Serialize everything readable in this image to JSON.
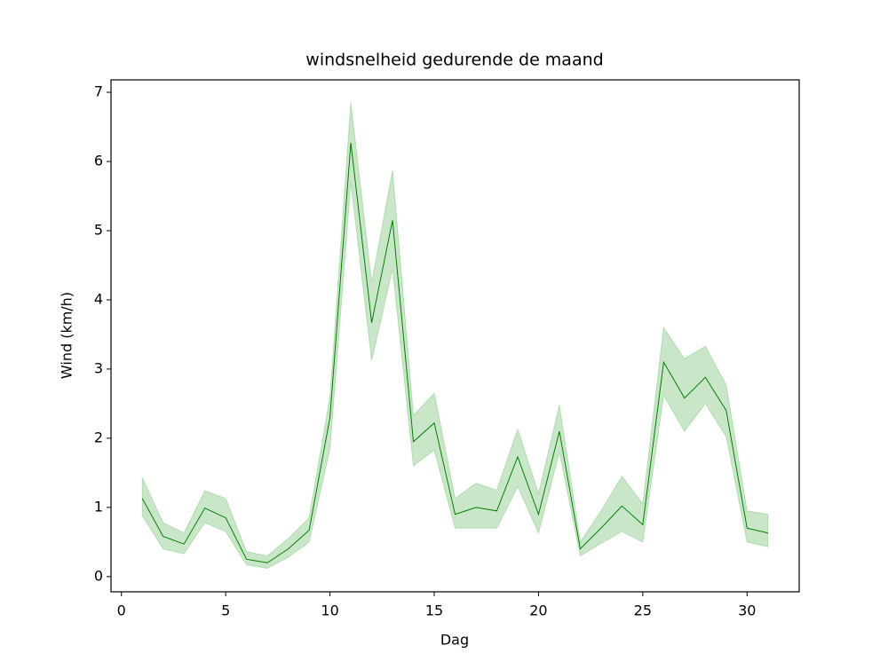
{
  "chart_data": {
    "type": "line",
    "title": "windsnelheid gedurende de maand",
    "xlabel": "Dag",
    "ylabel": "Wind (km/h)",
    "x": [
      1,
      2,
      3,
      4,
      5,
      6,
      7,
      8,
      9,
      10,
      11,
      12,
      13,
      14,
      15,
      16,
      17,
      18,
      19,
      20,
      21,
      22,
      23,
      24,
      25,
      26,
      27,
      28,
      29,
      30,
      31
    ],
    "series": [
      {
        "color": "#008000",
        "band_color": "#4daf4a",
        "values": [
          1.13,
          0.58,
          0.47,
          0.99,
          0.85,
          0.25,
          0.2,
          0.4,
          0.67,
          2.3,
          6.27,
          3.67,
          5.15,
          1.95,
          2.22,
          0.9,
          1.0,
          0.95,
          1.73,
          0.9,
          2.1,
          0.4,
          0.7,
          1.02,
          0.75,
          3.1,
          2.58,
          2.88,
          2.4,
          0.7,
          0.63
        ],
        "lower": [
          0.88,
          0.4,
          0.33,
          0.78,
          0.65,
          0.17,
          0.12,
          0.28,
          0.5,
          1.85,
          5.7,
          3.12,
          4.45,
          1.6,
          1.83,
          0.7,
          0.7,
          0.7,
          1.3,
          0.63,
          1.8,
          0.3,
          0.48,
          0.65,
          0.5,
          2.62,
          2.1,
          2.5,
          2.02,
          0.5,
          0.43
        ],
        "upper": [
          1.43,
          0.78,
          0.63,
          1.24,
          1.13,
          0.36,
          0.3,
          0.55,
          0.85,
          2.6,
          6.85,
          4.25,
          5.87,
          2.33,
          2.65,
          1.13,
          1.35,
          1.25,
          2.13,
          1.2,
          2.48,
          0.5,
          0.95,
          1.45,
          1.05,
          3.6,
          3.15,
          3.33,
          2.77,
          0.95,
          0.9
        ]
      }
    ],
    "xlim": [
      -0.5,
      32.5
    ],
    "ylim": [
      -0.22,
      7.18
    ],
    "xticks": [
      0,
      5,
      10,
      15,
      20,
      25,
      30
    ],
    "yticks": [
      0,
      1,
      2,
      3,
      4,
      5,
      6,
      7
    ],
    "grid": false
  }
}
